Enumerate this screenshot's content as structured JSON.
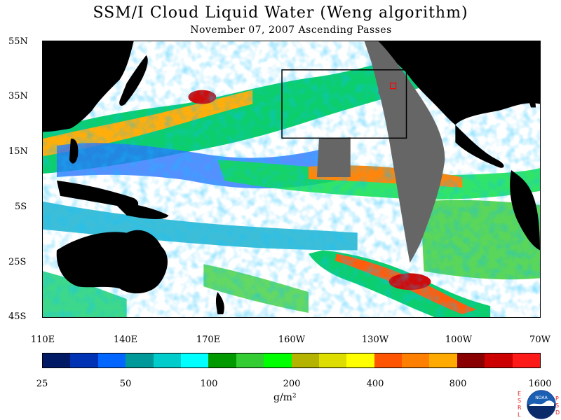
{
  "title": "SSM/I Cloud Liquid Water (Weng algorithm)",
  "subtitle": "November 07, 2007  Ascending Passes",
  "lat_labels": [
    "55N",
    "35N",
    "15N",
    "5S",
    "25S",
    "45S"
  ],
  "lon_labels": [
    "110E",
    "140E",
    "170E",
    "160W",
    "130W",
    "100W",
    "70W"
  ],
  "colorbar": {
    "colors": [
      "#001a66",
      "#0033b3",
      "#0066ff",
      "#009999",
      "#00cccc",
      "#00ffff",
      "#009900",
      "#33cc33",
      "#00ff00",
      "#b3b300",
      "#dddd00",
      "#ffff00",
      "#ff5500",
      "#ff8000",
      "#ffaa00",
      "#880000",
      "#cc0000",
      "#ff1a1a"
    ],
    "labels": [
      "25",
      "50",
      "100",
      "200",
      "400",
      "800",
      "1600"
    ],
    "units": "g/m²"
  },
  "logo": {
    "name": "noaa-logo",
    "left_letters": "ESRL",
    "right_letters": "PSD",
    "center_text": "NOAA"
  }
}
